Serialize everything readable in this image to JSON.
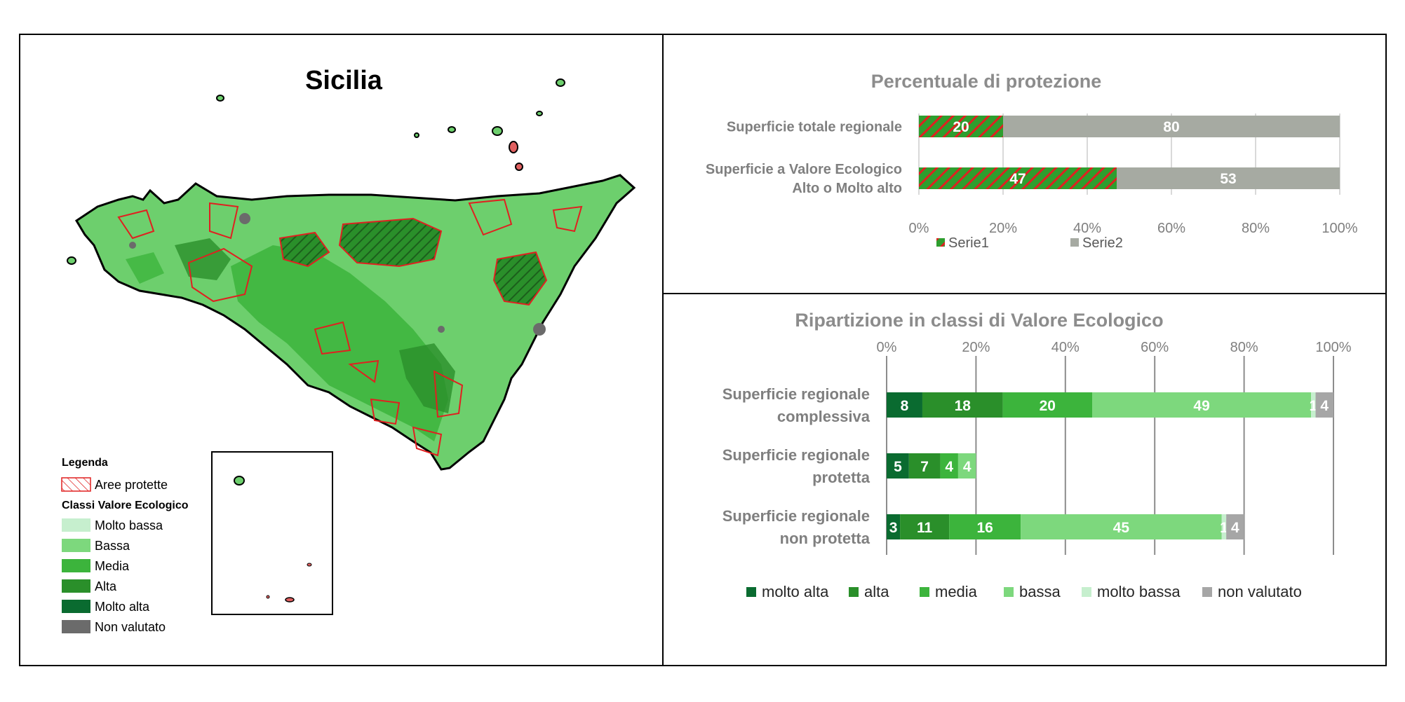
{
  "map": {
    "title": "Sicilia",
    "legend": {
      "title": "Legenda",
      "protected_label": "Aree protette",
      "classes_title": "Classi Valore Ecologico",
      "classes": [
        {
          "label": "Molto bassa",
          "color": "#c6efce"
        },
        {
          "label": "Bassa",
          "color": "#7dd87d"
        },
        {
          "label": "Media",
          "color": "#3cb43c"
        },
        {
          "label": "Alta",
          "color": "#2a8f2a"
        },
        {
          "label": "Molto alta",
          "color": "#0a6b30"
        },
        {
          "label": "Non valutato",
          "color": "#6b6b6b"
        }
      ]
    }
  },
  "chart_data": [
    {
      "type": "bar",
      "orientation": "horizontal",
      "stacked": true,
      "title": "Percentuale di protezione",
      "categories": [
        "Superficie totale regionale",
        "Superficie a Valore Ecologico Alto o Molto alto"
      ],
      "category_lines": [
        [
          "Superficie totale regionale"
        ],
        [
          "Superficie a Valore Ecologico",
          "Alto o Molto alto"
        ]
      ],
      "series": [
        {
          "name": "Serie1",
          "values": [
            20,
            47
          ],
          "color": "#2e9e2e",
          "hatch": "#e02020"
        },
        {
          "name": "Serie2",
          "values": [
            80,
            53
          ],
          "color": "#a6aaa2"
        }
      ],
      "xlim": [
        0,
        100
      ],
      "ticks": [
        "0%",
        "20%",
        "40%",
        "60%",
        "80%",
        "100%"
      ],
      "grid": true,
      "legend_position": "bottom"
    },
    {
      "type": "bar",
      "orientation": "horizontal",
      "stacked": true,
      "title": "Ripartizione in classi di Valore Ecologico",
      "categories": [
        "Superficie regionale complessiva",
        "Superficie regionale protetta",
        "Superficie regionale non protetta"
      ],
      "category_lines": [
        [
          "Superficie regionale",
          "complessiva"
        ],
        [
          "Superficie regionale",
          "protetta"
        ],
        [
          "Superficie regionale",
          "non protetta"
        ]
      ],
      "series": [
        {
          "name": "molto alta",
          "values": [
            8,
            5,
            3
          ],
          "color": "#0a6b30"
        },
        {
          "name": "alta",
          "values": [
            18,
            7,
            11
          ],
          "color": "#2a8f2a"
        },
        {
          "name": "media",
          "values": [
            20,
            4,
            16
          ],
          "color": "#3cb43c"
        },
        {
          "name": "bassa",
          "values": [
            49,
            4,
            45
          ],
          "color": "#7dd87d"
        },
        {
          "name": "molto bassa",
          "values": [
            1,
            0,
            1
          ],
          "color": "#c6efce"
        },
        {
          "name": "non valutato",
          "values": [
            4,
            0,
            4
          ],
          "color": "#a6a6a6"
        }
      ],
      "xlim": [
        0,
        100
      ],
      "ticks": [
        "0%",
        "20%",
        "40%",
        "60%",
        "80%",
        "100%"
      ],
      "axis_position": "top",
      "grid": true,
      "legend_position": "bottom"
    }
  ]
}
